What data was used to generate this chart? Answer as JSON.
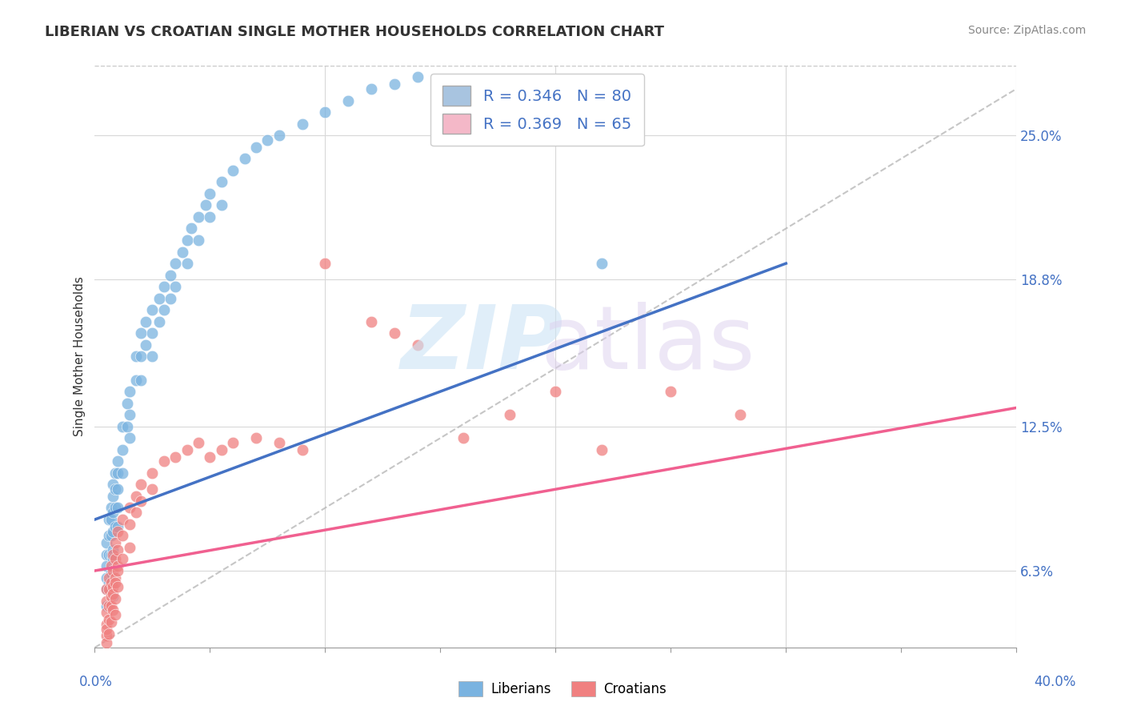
{
  "title": "LIBERIAN VS CROATIAN SINGLE MOTHER HOUSEHOLDS CORRELATION CHART",
  "source_text": "Source: ZipAtlas.com",
  "ylabel": "Single Mother Households",
  "right_yticks": [
    "6.3%",
    "12.5%",
    "18.8%",
    "25.0%"
  ],
  "right_ytick_vals": [
    0.063,
    0.125,
    0.188,
    0.25
  ],
  "xlim": [
    0.0,
    0.4
  ],
  "ylim": [
    0.03,
    0.28
  ],
  "legend_entries": [
    {
      "label": "R = 0.346   N = 80",
      "color": "#a8c4e0"
    },
    {
      "label": "R = 0.369   N = 65",
      "color": "#f4b8c8"
    }
  ],
  "liberian_color": "#7ab3e0",
  "croatian_color": "#f08080",
  "liberian_line_color": "#4472c4",
  "croatian_line_color": "#f06090",
  "ref_line_color": "#b8b8b8",
  "background_color": "#ffffff",
  "liberian_scatter_x": [
    0.005,
    0.005,
    0.005,
    0.005,
    0.006,
    0.006,
    0.006,
    0.007,
    0.007,
    0.007,
    0.007,
    0.008,
    0.008,
    0.008,
    0.008,
    0.008,
    0.009,
    0.009,
    0.009,
    0.009,
    0.01,
    0.01,
    0.01,
    0.01,
    0.01,
    0.012,
    0.012,
    0.012,
    0.014,
    0.014,
    0.015,
    0.015,
    0.015,
    0.018,
    0.018,
    0.02,
    0.02,
    0.02,
    0.022,
    0.022,
    0.025,
    0.025,
    0.025,
    0.028,
    0.028,
    0.03,
    0.03,
    0.033,
    0.033,
    0.035,
    0.035,
    0.038,
    0.04,
    0.04,
    0.042,
    0.045,
    0.045,
    0.048,
    0.05,
    0.05,
    0.055,
    0.055,
    0.06,
    0.065,
    0.07,
    0.075,
    0.08,
    0.09,
    0.1,
    0.11,
    0.12,
    0.13,
    0.14,
    0.005,
    0.005,
    0.006,
    0.007,
    0.008,
    0.008,
    0.22
  ],
  "liberian_scatter_y": [
    0.075,
    0.07,
    0.065,
    0.06,
    0.085,
    0.078,
    0.07,
    0.09,
    0.085,
    0.078,
    0.07,
    0.1,
    0.095,
    0.088,
    0.08,
    0.072,
    0.105,
    0.098,
    0.09,
    0.082,
    0.11,
    0.105,
    0.098,
    0.09,
    0.082,
    0.125,
    0.115,
    0.105,
    0.135,
    0.125,
    0.14,
    0.13,
    0.12,
    0.155,
    0.145,
    0.165,
    0.155,
    0.145,
    0.17,
    0.16,
    0.175,
    0.165,
    0.155,
    0.18,
    0.17,
    0.185,
    0.175,
    0.19,
    0.18,
    0.195,
    0.185,
    0.2,
    0.205,
    0.195,
    0.21,
    0.215,
    0.205,
    0.22,
    0.225,
    0.215,
    0.23,
    0.22,
    0.235,
    0.24,
    0.245,
    0.248,
    0.25,
    0.255,
    0.26,
    0.265,
    0.27,
    0.272,
    0.275,
    0.055,
    0.048,
    0.058,
    0.062,
    0.068,
    0.052,
    0.195
  ],
  "croatian_scatter_x": [
    0.005,
    0.005,
    0.005,
    0.005,
    0.005,
    0.006,
    0.006,
    0.006,
    0.007,
    0.007,
    0.007,
    0.008,
    0.008,
    0.008,
    0.009,
    0.009,
    0.009,
    0.01,
    0.01,
    0.01,
    0.012,
    0.012,
    0.015,
    0.015,
    0.018,
    0.018,
    0.02,
    0.02,
    0.025,
    0.025,
    0.03,
    0.035,
    0.04,
    0.045,
    0.05,
    0.055,
    0.06,
    0.07,
    0.08,
    0.09,
    0.1,
    0.12,
    0.13,
    0.14,
    0.16,
    0.18,
    0.2,
    0.22,
    0.25,
    0.28,
    0.005,
    0.005,
    0.006,
    0.006,
    0.007,
    0.007,
    0.008,
    0.008,
    0.009,
    0.009,
    0.009,
    0.01,
    0.01,
    0.012,
    0.015
  ],
  "croatian_scatter_y": [
    0.055,
    0.05,
    0.045,
    0.04,
    0.035,
    0.06,
    0.055,
    0.048,
    0.065,
    0.058,
    0.052,
    0.07,
    0.063,
    0.056,
    0.075,
    0.068,
    0.06,
    0.08,
    0.072,
    0.065,
    0.085,
    0.078,
    0.09,
    0.083,
    0.095,
    0.088,
    0.1,
    0.093,
    0.105,
    0.098,
    0.11,
    0.112,
    0.115,
    0.118,
    0.112,
    0.115,
    0.118,
    0.12,
    0.118,
    0.115,
    0.195,
    0.17,
    0.165,
    0.16,
    0.12,
    0.13,
    0.14,
    0.115,
    0.14,
    0.13,
    0.038,
    0.032,
    0.042,
    0.036,
    0.048,
    0.041,
    0.053,
    0.046,
    0.058,
    0.051,
    0.044,
    0.063,
    0.056,
    0.068,
    0.073
  ],
  "liberian_line": {
    "x0": 0.0,
    "x1": 0.3,
    "y0": 0.085,
    "y1": 0.195
  },
  "croatian_line": {
    "x0": 0.0,
    "x1": 0.4,
    "y0": 0.063,
    "y1": 0.133
  },
  "ref_line": {
    "x0": 0.0,
    "x1": 0.4,
    "y0": 0.03,
    "y1": 0.27
  }
}
